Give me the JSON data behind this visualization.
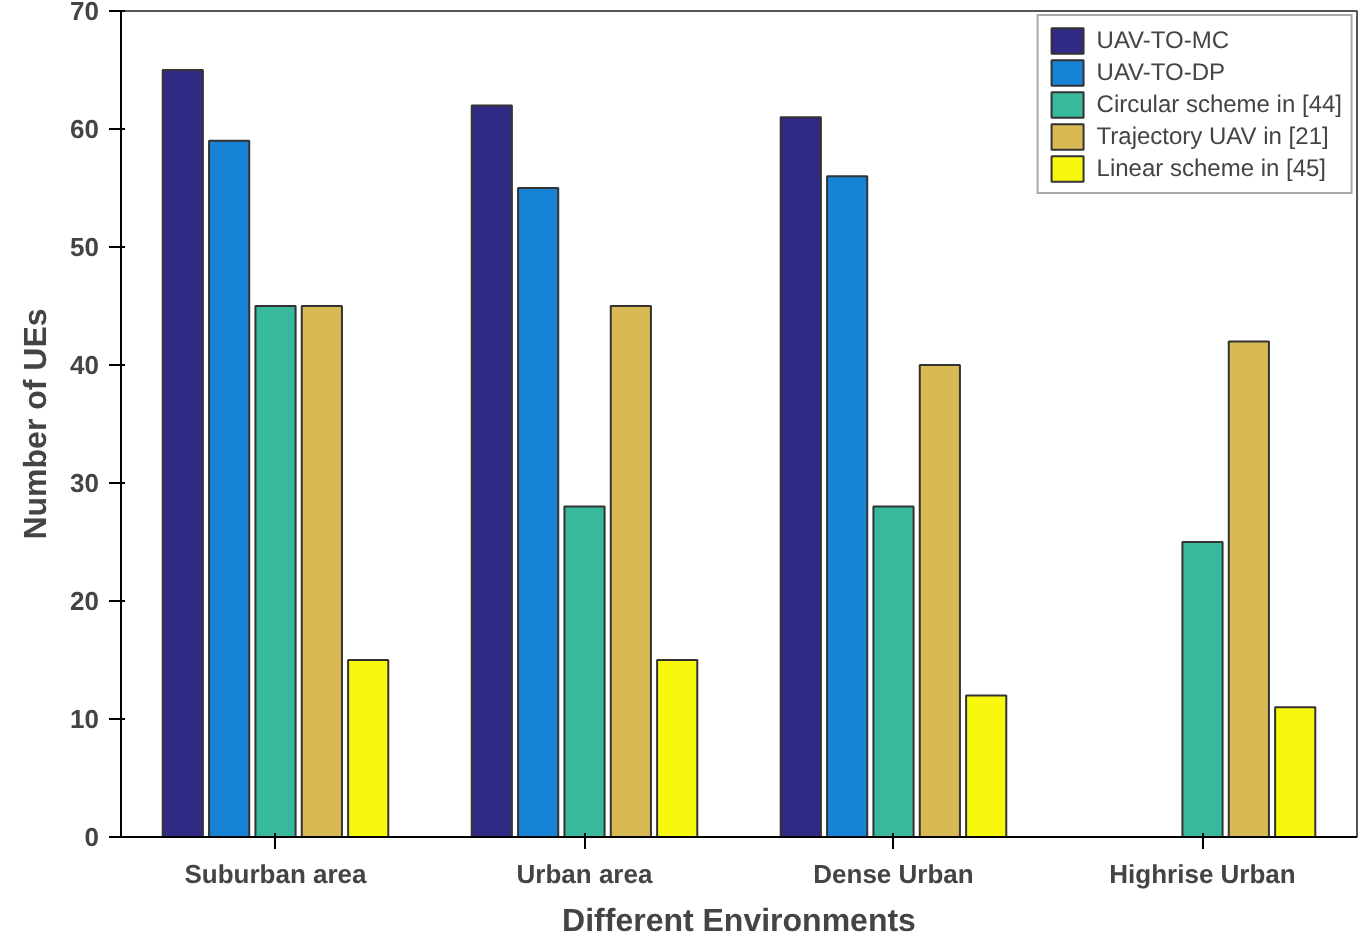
{
  "chart_data": {
    "type": "bar",
    "xlabel": "Different Environments",
    "ylabel": "Number of UEs",
    "categories": [
      "Suburban area",
      "Urban area",
      "Dense Urban",
      "Highrise Urban"
    ],
    "series": [
      {
        "name": "UAV-TO-MC",
        "color": "#312a84",
        "values": [
          65,
          62,
          61,
          null
        ]
      },
      {
        "name": "UAV-TO-DP",
        "color": "#1783d6",
        "values": [
          59,
          55,
          56,
          null
        ]
      },
      {
        "name": "Circular scheme in [44]",
        "color": "#38b99e",
        "values": [
          45,
          28,
          28,
          25
        ]
      },
      {
        "name": "Trajectory UAV in [21]",
        "color": "#d8b954",
        "values": [
          45,
          45,
          40,
          42
        ]
      },
      {
        "name": "Linear scheme in [45]",
        "color": "#f8f80f",
        "values": [
          15,
          15,
          12,
          11
        ]
      }
    ],
    "ylim": [
      0,
      70
    ],
    "yticks": [
      0,
      10,
      20,
      30,
      40,
      50,
      60,
      70
    ],
    "grid": false,
    "legend": "top right"
  }
}
